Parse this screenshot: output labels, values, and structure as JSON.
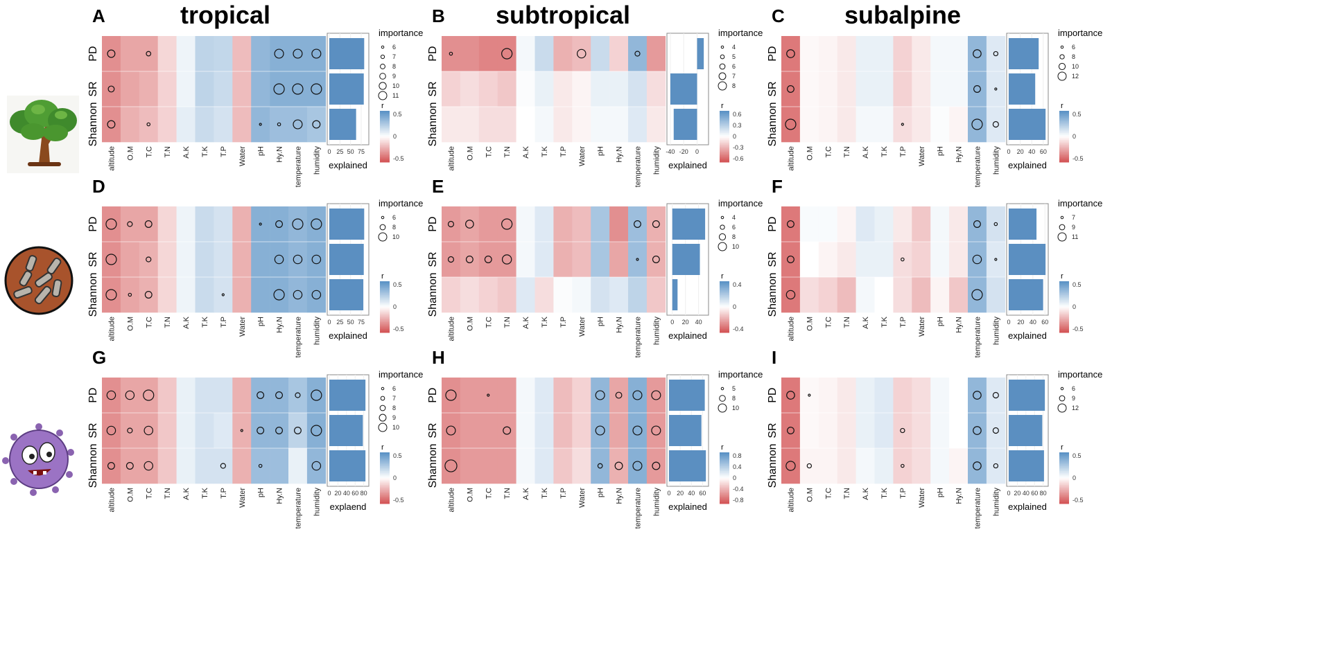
{
  "chart_data": {
    "type": "heatmap",
    "column_titles": [
      "tropical",
      "subtropical",
      "subalpine"
    ],
    "rows": [
      "PD",
      "SR",
      "Shannon"
    ],
    "variables": [
      "altitude",
      "O.M",
      "T.C",
      "T.N",
      "A.K",
      "T.K",
      "T.P",
      "Water",
      "pH",
      "Hy.N",
      "temperature",
      "humidity"
    ],
    "colorbar_title": "r",
    "size_legend_title": "importance",
    "panels": [
      {
        "id": "A",
        "xlabel": "explained",
        "explained": [
          82,
          81,
          63
        ],
        "explained_ticks": [
          0,
          25,
          50,
          75
        ],
        "explained_range": [
          0,
          88
        ],
        "color_ticks": [
          0.5,
          0.0,
          -0.5
        ],
        "size_legend": [
          6,
          7,
          8,
          9,
          10,
          11
        ],
        "r": [
          [
            -0.5,
            -0.4,
            -0.4,
            -0.18,
            0.08,
            0.3,
            0.28,
            -0.3,
            0.5,
            0.55,
            0.55,
            0.55
          ],
          [
            -0.5,
            -0.4,
            -0.35,
            -0.2,
            0.08,
            0.3,
            0.25,
            -0.3,
            0.5,
            0.55,
            0.55,
            0.55
          ],
          [
            -0.5,
            -0.35,
            -0.3,
            -0.2,
            0.12,
            0.25,
            0.2,
            -0.3,
            0.5,
            0.45,
            0.45,
            0.4
          ]
        ],
        "importance": [
          [
            9,
            0,
            7,
            0,
            0,
            0,
            0,
            0,
            0,
            10,
            10,
            10
          ],
          [
            8,
            0,
            0,
            0,
            0,
            0,
            0,
            0,
            0,
            11,
            11,
            11
          ],
          [
            9,
            0,
            6,
            0,
            0,
            0,
            0,
            0,
            4,
            6,
            10,
            9
          ]
        ]
      },
      {
        "id": "B",
        "xlabel": "explained",
        "explained": [
          10,
          -40,
          -35
        ],
        "explained_ticks": [
          -40,
          -20,
          0
        ],
        "explained_range": [
          -42,
          14
        ],
        "color_ticks": [
          0.6,
          0.3,
          0.0,
          -0.3,
          -0.6
        ],
        "size_legend": [
          4,
          5,
          6,
          7,
          8
        ],
        "r": [
          [
            -0.5,
            -0.5,
            -0.55,
            -0.55,
            0.05,
            0.25,
            -0.35,
            -0.3,
            0.25,
            -0.2,
            0.5,
            -0.45
          ],
          [
            -0.2,
            -0.15,
            -0.2,
            -0.25,
            0.02,
            0.1,
            -0.1,
            -0.05,
            0.1,
            0.1,
            0.2,
            -0.15
          ],
          [
            -0.1,
            -0.1,
            -0.15,
            -0.15,
            0.0,
            0.05,
            -0.1,
            -0.05,
            0.05,
            0.05,
            0.15,
            -0.1
          ]
        ],
        "importance": [
          [
            4,
            0,
            0,
            8,
            0,
            0,
            0,
            7,
            0,
            0,
            5,
            0
          ],
          [
            0,
            0,
            0,
            0,
            0,
            0,
            0,
            0,
            0,
            0,
            0,
            0
          ],
          [
            0,
            0,
            0,
            0,
            0,
            0,
            0,
            0,
            0,
            0,
            0,
            0
          ]
        ]
      },
      {
        "id": "C",
        "xlabel": "explained",
        "explained": [
          52,
          46,
          64
        ],
        "explained_ticks": [
          0,
          20,
          40,
          60
        ],
        "explained_range": [
          0,
          65
        ],
        "color_ticks": [
          0.5,
          0.0,
          -0.5
        ],
        "size_legend": [
          6,
          8,
          10,
          12
        ],
        "r": [
          [
            -0.6,
            -0.03,
            -0.05,
            -0.1,
            0.1,
            0.1,
            -0.2,
            -0.1,
            0.05,
            0.05,
            0.5,
            0.15
          ],
          [
            -0.6,
            -0.03,
            -0.05,
            -0.1,
            0.1,
            0.1,
            -0.2,
            -0.1,
            0.05,
            0.05,
            0.5,
            0.15
          ],
          [
            -0.6,
            -0.03,
            -0.05,
            -0.1,
            0.05,
            0.05,
            -0.15,
            -0.1,
            0.02,
            -0.05,
            0.5,
            0.15
          ]
        ],
        "importance": [
          [
            10,
            0,
            0,
            0,
            0,
            0,
            0,
            0,
            0,
            0,
            10,
            7
          ],
          [
            9,
            0,
            0,
            0,
            0,
            0,
            0,
            0,
            0,
            0,
            9,
            5
          ],
          [
            12,
            0,
            0,
            0,
            0,
            0,
            4,
            0,
            0,
            0,
            12,
            8
          ]
        ]
      },
      {
        "id": "D",
        "xlabel": "explained",
        "explained": [
          82,
          81,
          80
        ],
        "explained_ticks": [
          0,
          25,
          50,
          75
        ],
        "explained_range": [
          0,
          88
        ],
        "color_ticks": [
          0.5,
          0.0,
          -0.5
        ],
        "size_legend": [
          6,
          8,
          10
        ],
        "r": [
          [
            -0.5,
            -0.4,
            -0.4,
            -0.18,
            0.08,
            0.25,
            0.2,
            -0.35,
            0.55,
            0.55,
            0.5,
            0.55
          ],
          [
            -0.5,
            -0.4,
            -0.35,
            -0.18,
            0.08,
            0.25,
            0.2,
            -0.35,
            0.55,
            0.55,
            0.5,
            0.55
          ],
          [
            -0.5,
            -0.4,
            -0.35,
            -0.18,
            0.08,
            0.25,
            0.2,
            -0.35,
            0.55,
            0.55,
            0.5,
            0.55
          ]
        ],
        "importance": [
          [
            10,
            7,
            8,
            0,
            0,
            0,
            0,
            0,
            5,
            8,
            10,
            10
          ],
          [
            10,
            0,
            7,
            0,
            0,
            0,
            0,
            0,
            0,
            9,
            9,
            9
          ],
          [
            10,
            6,
            8,
            0,
            0,
            0,
            3,
            0,
            0,
            10,
            9,
            9
          ]
        ]
      },
      {
        "id": "E",
        "xlabel": "explained",
        "explained": [
          50,
          42,
          8
        ],
        "explained_ticks": [
          0,
          20,
          40
        ],
        "explained_range": [
          -5,
          52
        ],
        "color_ticks": [
          0.4,
          0.0,
          -0.4
        ],
        "size_legend": [
          4,
          6,
          8,
          10
        ],
        "r": [
          [
            -0.45,
            -0.4,
            -0.45,
            -0.45,
            0.05,
            0.15,
            -0.35,
            -0.3,
            0.4,
            -0.5,
            0.45,
            -0.35
          ],
          [
            -0.45,
            -0.4,
            -0.45,
            -0.45,
            0.05,
            0.15,
            -0.35,
            -0.3,
            0.4,
            -0.4,
            0.45,
            -0.35
          ],
          [
            -0.2,
            -0.15,
            -0.2,
            -0.25,
            0.15,
            -0.15,
            0.02,
            0.05,
            0.2,
            0.15,
            0.3,
            -0.25
          ]
        ],
        "importance": [
          [
            6,
            8,
            0,
            10,
            0,
            0,
            0,
            0,
            0,
            0,
            7,
            7
          ],
          [
            6,
            7,
            7,
            9,
            0,
            0,
            0,
            0,
            0,
            0,
            3,
            7
          ],
          [
            0,
            0,
            0,
            0,
            0,
            0,
            0,
            0,
            0,
            0,
            0,
            0
          ]
        ]
      },
      {
        "id": "F",
        "xlabel": "explained",
        "explained": [
          46,
          61,
          57
        ],
        "explained_ticks": [
          0,
          20,
          40,
          60
        ],
        "explained_range": [
          0,
          62
        ],
        "color_ticks": [
          0.5,
          0.0,
          -0.5
        ],
        "size_legend": [
          7,
          9,
          11
        ],
        "r": [
          [
            -0.6,
            0.03,
            0.03,
            -0.05,
            0.15,
            0.1,
            -0.1,
            -0.25,
            0.05,
            -0.1,
            0.5,
            0.2
          ],
          [
            -0.6,
            0.0,
            -0.05,
            -0.1,
            0.1,
            0.1,
            -0.15,
            -0.2,
            0.05,
            -0.1,
            0.5,
            0.15
          ],
          [
            -0.6,
            -0.15,
            -0.2,
            -0.3,
            0.05,
            0.0,
            -0.15,
            -0.3,
            -0.05,
            -0.25,
            0.5,
            0.2
          ]
        ],
        "importance": [
          [
            9,
            0,
            0,
            0,
            0,
            0,
            0,
            0,
            0,
            0,
            9,
            7
          ],
          [
            9,
            0,
            0,
            0,
            0,
            0,
            7,
            0,
            0,
            0,
            10,
            5
          ],
          [
            10,
            0,
            0,
            0,
            0,
            0,
            0,
            0,
            0,
            0,
            11,
            0
          ]
        ]
      },
      {
        "id": "G",
        "xlabel": "explaend",
        "explained": [
          84,
          78,
          84
        ],
        "explained_ticks": [
          0,
          20,
          40,
          60,
          80
        ],
        "explained_range": [
          0,
          87
        ],
        "color_ticks": [
          0.5,
          0.0,
          -0.5
        ],
        "size_legend": [
          6,
          7,
          8,
          9,
          10
        ],
        "r": [
          [
            -0.5,
            -0.4,
            -0.4,
            -0.25,
            0.1,
            0.2,
            0.2,
            -0.35,
            0.5,
            0.5,
            0.4,
            0.55
          ],
          [
            -0.5,
            -0.4,
            -0.4,
            -0.25,
            0.1,
            0.2,
            0.15,
            -0.35,
            0.5,
            0.5,
            0.3,
            0.55
          ],
          [
            -0.5,
            -0.4,
            -0.4,
            -0.25,
            0.1,
            0.2,
            0.2,
            -0.35,
            0.45,
            0.45,
            0.1,
            0.5
          ]
        ],
        "importance": [
          [
            9,
            9,
            10,
            0,
            0,
            0,
            0,
            0,
            8,
            8,
            7,
            10
          ],
          [
            9,
            7,
            9,
            0,
            0,
            0,
            0,
            4,
            8,
            8,
            8,
            10
          ],
          [
            8,
            8,
            9,
            0,
            0,
            0,
            7,
            0,
            6,
            0,
            0,
            9
          ]
        ]
      },
      {
        "id": "H",
        "xlabel": "explained",
        "explained": [
          64,
          58,
          66
        ],
        "explained_ticks": [
          0,
          20,
          40,
          60
        ],
        "explained_range": [
          0,
          67
        ],
        "color_ticks": [
          0.8,
          0.4,
          0.0,
          -0.4,
          -0.8
        ],
        "size_legend": [
          5,
          8,
          10
        ],
        "r": [
          [
            -0.5,
            -0.45,
            -0.45,
            -0.45,
            0.05,
            0.15,
            -0.3,
            -0.2,
            0.5,
            -0.4,
            0.55,
            -0.45
          ],
          [
            -0.5,
            -0.45,
            -0.45,
            -0.45,
            0.05,
            0.15,
            -0.3,
            -0.2,
            0.5,
            -0.4,
            0.55,
            -0.45
          ],
          [
            -0.5,
            -0.45,
            -0.45,
            -0.45,
            0.05,
            0.15,
            -0.25,
            -0.15,
            0.5,
            -0.35,
            0.55,
            -0.45
          ]
        ],
        "importance": [
          [
            10,
            0,
            4,
            0,
            0,
            0,
            0,
            0,
            9,
            7,
            9,
            9
          ],
          [
            9,
            0,
            0,
            8,
            0,
            0,
            0,
            0,
            9,
            0,
            9,
            9
          ],
          [
            11,
            0,
            0,
            0,
            0,
            0,
            0,
            0,
            6,
            8,
            9,
            8
          ]
        ]
      },
      {
        "id": "I",
        "xlabel": "explained",
        "explained": [
          84,
          78,
          82
        ],
        "explained_ticks": [
          0,
          20,
          40,
          60,
          80
        ],
        "explained_range": [
          0,
          87
        ],
        "color_ticks": [
          0.5,
          0.0,
          -0.5
        ],
        "size_legend": [
          6,
          9,
          12
        ],
        "r": [
          [
            -0.6,
            -0.03,
            -0.05,
            -0.1,
            0.1,
            0.15,
            -0.2,
            -0.15,
            0.05,
            0.0,
            0.5,
            0.15
          ],
          [
            -0.6,
            -0.03,
            -0.05,
            -0.1,
            0.1,
            0.15,
            -0.2,
            -0.15,
            0.05,
            0.0,
            0.5,
            0.15
          ],
          [
            -0.6,
            -0.05,
            -0.05,
            -0.1,
            0.05,
            0.1,
            -0.2,
            -0.15,
            0.05,
            -0.05,
            0.5,
            0.15
          ]
        ],
        "importance": [
          [
            10,
            4,
            0,
            0,
            0,
            0,
            0,
            0,
            0,
            0,
            10,
            8
          ],
          [
            9,
            0,
            0,
            0,
            0,
            0,
            7,
            0,
            0,
            0,
            10,
            8
          ],
          [
            11,
            7,
            0,
            0,
            0,
            0,
            6,
            0,
            0,
            0,
            10,
            7
          ]
        ]
      }
    ]
  },
  "colors": {
    "positive": "#2e75b6",
    "negative": "#c8282a",
    "bar": "#5b8fc1",
    "neutral": "#ffffff"
  },
  "icons": [
    "tree-icon",
    "fungus-icon",
    "bacterium-icon"
  ]
}
